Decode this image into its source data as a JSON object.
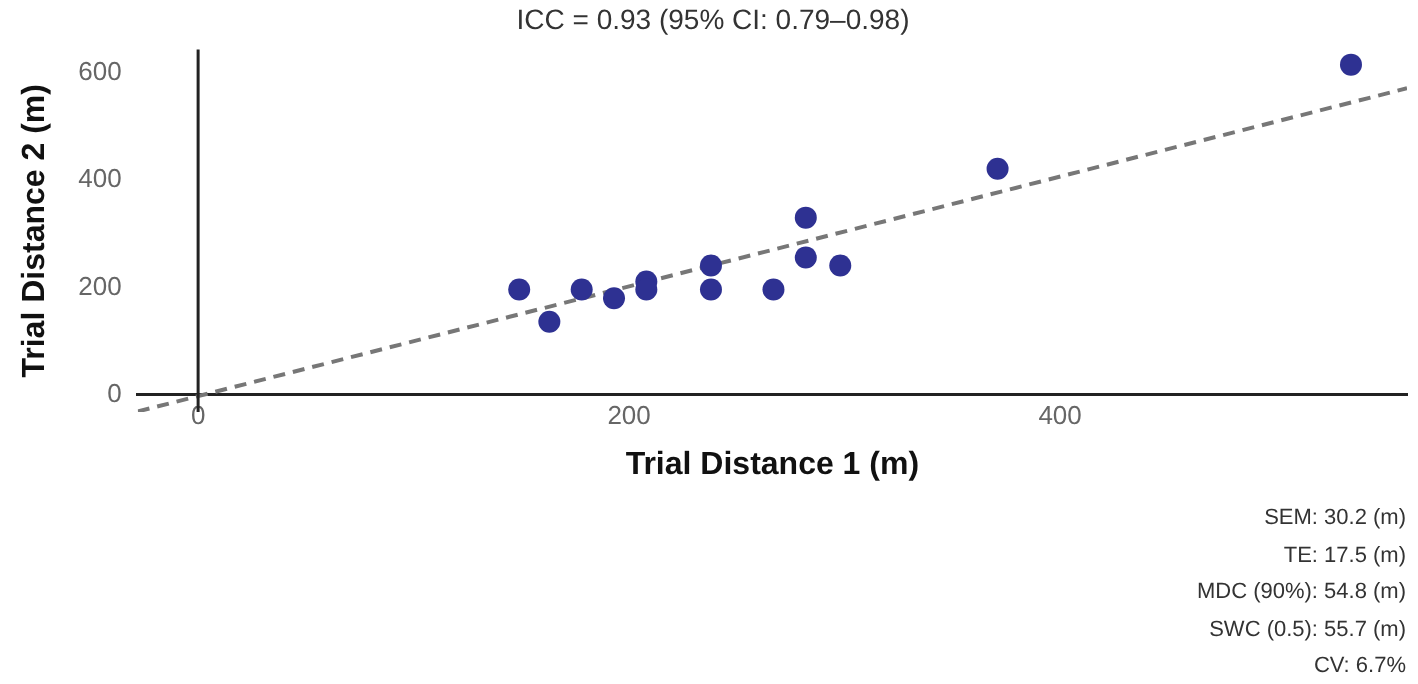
{
  "chart_data": {
    "type": "scatter",
    "title": "ICC = 0.93 (95% CI: 0.79–0.98)",
    "xlabel": "Trial Distance 1 (m)",
    "ylabel": "Trial Distance 2 (m)",
    "xlim": [
      -28,
      561
    ],
    "ylim": [
      -32,
      643
    ],
    "xticks": [
      0,
      200,
      400
    ],
    "yticks": [
      0,
      200,
      400,
      600
    ],
    "grid": false,
    "legend": false,
    "marker": "circle",
    "series": [
      {
        "color": "#2e3192",
        "x": [
          149,
          163,
          178,
          193,
          208,
          208,
          238,
          238,
          267,
          282,
          282,
          298,
          371,
          535
        ],
        "values": [
          196,
          136,
          196,
          180,
          211,
          196,
          241,
          196,
          196,
          256,
          330,
          241,
          421,
          615
        ]
      },
      {
        "type": "line",
        "color": "#777777",
        "line_style": "dashed",
        "marker": "none",
        "x": [
          -28,
          561
        ],
        "values": [
          -31,
          571
        ]
      }
    ],
    "ref_lines": [
      {
        "axis": "x",
        "value": 0,
        "color": "#222222"
      }
    ],
    "annotations": [
      "SEM: 30.2 (m)",
      "TE: 17.5 (m)",
      "MDC (90%): 54.8 (m)",
      "SWC (0.5): 55.7 (m)",
      "CV: 6.7%"
    ]
  }
}
